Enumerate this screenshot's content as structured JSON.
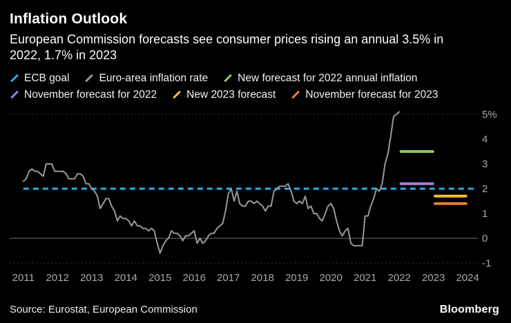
{
  "header": {
    "title": "Inflation Outlook",
    "subtitle": "European Commission forecasts see consumer prices rising an annual 3.5% in 2022, 1.7% in 2023"
  },
  "legend": {
    "items": [
      {
        "label": "ECB goal",
        "color": "#23b2eb"
      },
      {
        "label": "Euro-area inflation rate",
        "color": "#9a9a9a"
      },
      {
        "label": "New forecast for 2022 annual inflation",
        "color": "#8cc86c"
      },
      {
        "label": "November forecast for 2022",
        "color": "#a47fd8"
      },
      {
        "label": "New 2023 forecast",
        "color": "#f0c13f"
      },
      {
        "label": "November forecast for 2023",
        "color": "#f08034"
      }
    ]
  },
  "chart_data": {
    "type": "line",
    "title": "Inflation Outlook",
    "xlim": [
      2010.6,
      2024.3
    ],
    "ylim": [
      -1,
      5
    ],
    "x_ticks": [
      2011,
      2012,
      2013,
      2014,
      2015,
      2016,
      2017,
      2018,
      2019,
      2020,
      2021,
      2022,
      2023,
      2024
    ],
    "y_ticks": [
      {
        "value": 5,
        "label": "5%"
      },
      {
        "value": 4,
        "label": "4"
      },
      {
        "value": 3,
        "label": "3"
      },
      {
        "value": 2,
        "label": "2"
      },
      {
        "value": 1,
        "label": "1"
      },
      {
        "value": 0,
        "label": "0"
      },
      {
        "value": -1,
        "label": "-1"
      }
    ],
    "dotted_gridlines": [
      5,
      -1
    ],
    "zero_line": 0,
    "reference_line": {
      "name": "ECB goal",
      "value": 2,
      "color": "#23b2eb",
      "style": "dashed",
      "x_start": 2011,
      "x_end": 2024.2
    },
    "series": [
      {
        "name": "Euro-area inflation rate",
        "color": "#9a9a9a",
        "style": "solid",
        "start_year": 2011,
        "frequency": "monthly",
        "values": [
          2.3,
          2.4,
          2.7,
          2.8,
          2.7,
          2.7,
          2.6,
          2.5,
          3.0,
          3.0,
          3.0,
          2.7,
          2.7,
          2.7,
          2.7,
          2.6,
          2.4,
          2.4,
          2.4,
          2.6,
          2.6,
          2.5,
          2.2,
          2.2,
          2.0,
          1.9,
          1.7,
          1.2,
          1.4,
          1.6,
          1.6,
          1.3,
          1.1,
          0.7,
          0.9,
          0.8,
          0.8,
          0.7,
          0.5,
          0.7,
          0.5,
          0.5,
          0.4,
          0.4,
          0.3,
          0.4,
          0.3,
          -0.2,
          -0.6,
          -0.3,
          -0.1,
          0.0,
          0.3,
          0.2,
          0.2,
          0.1,
          -0.1,
          0.1,
          0.1,
          0.2,
          0.3,
          -0.2,
          0.0,
          -0.2,
          -0.1,
          0.1,
          0.2,
          0.2,
          0.4,
          0.5,
          0.6,
          1.1,
          1.8,
          2.0,
          1.5,
          1.9,
          1.4,
          1.3,
          1.3,
          1.5,
          1.5,
          1.4,
          1.5,
          1.4,
          1.3,
          1.1,
          1.3,
          1.3,
          1.9,
          2.0,
          2.1,
          2.1,
          2.1,
          2.2,
          1.9,
          1.5,
          1.4,
          1.5,
          1.4,
          1.7,
          1.2,
          1.3,
          1.0,
          1.0,
          0.8,
          0.7,
          1.0,
          1.3,
          1.4,
          1.2,
          0.7,
          0.3,
          0.1,
          0.3,
          0.4,
          -0.2,
          -0.3,
          -0.3,
          -0.3,
          -0.3,
          0.9,
          0.9,
          1.3,
          1.6,
          2.0,
          1.9,
          2.2,
          3.0,
          3.4,
          4.1,
          4.9,
          5.0,
          5.1
        ]
      }
    ],
    "forecast_segments": [
      {
        "name": "New forecast for 2022 annual inflation",
        "value": 3.5,
        "x_start": 2022.05,
        "x_end": 2022.98,
        "color": "#8cc86c"
      },
      {
        "name": "November forecast for 2022",
        "value": 2.2,
        "x_start": 2022.05,
        "x_end": 2022.98,
        "color": "#a47fd8"
      },
      {
        "name": "New 2023 forecast",
        "value": 1.7,
        "x_start": 2023.05,
        "x_end": 2023.95,
        "color": "#f0c13f"
      },
      {
        "name": "November forecast for 2023",
        "value": 1.4,
        "x_start": 2023.05,
        "x_end": 2023.95,
        "color": "#f08034"
      }
    ]
  },
  "footer": {
    "source": "Source: Eurostat, European Commission",
    "brand": "Bloomberg"
  }
}
